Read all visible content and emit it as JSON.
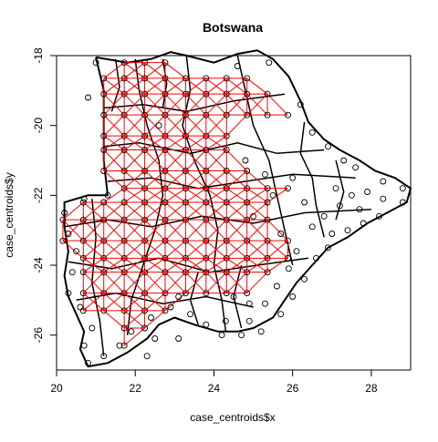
{
  "chart_data": {
    "type": "scatter",
    "title": "Botswana",
    "xlabel": "case_centroids$x",
    "ylabel": "case_centroids$y",
    "xlim": [
      20,
      29
    ],
    "ylim": [
      -27,
      -18
    ],
    "x_ticks": [
      "20",
      "22",
      "24",
      "26",
      "28"
    ],
    "y_ticks": [
      "-18",
      "-20",
      "-22",
      "-24",
      "-26"
    ],
    "grid": false,
    "legend": "none",
    "colors": {
      "points": "#000000",
      "grid_links": "#ff0000",
      "borders": "#000000",
      "network_links": "#000000"
    },
    "grid_x_min": 21.2,
    "grid_step": 0.52,
    "grid_rows": [
      {
        "y": -18.2,
        "cols": [
          1,
          2,
          3
        ]
      },
      {
        "y": -18.65,
        "cols": [
          0,
          1,
          2,
          3,
          4,
          5,
          6,
          7
        ]
      },
      {
        "y": -19.1,
        "cols": [
          0,
          1,
          2,
          3,
          4,
          5,
          6,
          7,
          8
        ]
      },
      {
        "y": -19.7,
        "cols": [
          0,
          1,
          2,
          3,
          4,
          5,
          6,
          7,
          8,
          9
        ]
      },
      {
        "y": -20.3,
        "cols": [
          0,
          1,
          2,
          3,
          4,
          5,
          6
        ]
      },
      {
        "y": -20.7,
        "cols": [
          0,
          1,
          2,
          3,
          4,
          5,
          6
        ]
      },
      {
        "y": -21.3,
        "cols": [
          0,
          1,
          2,
          3,
          4,
          5,
          6,
          7
        ]
      },
      {
        "y": -21.8,
        "cols": [
          1,
          2,
          3,
          4,
          5,
          6,
          7,
          8,
          9
        ]
      },
      {
        "y": -22.2,
        "cols": [
          2,
          3,
          4,
          5,
          6,
          7,
          8
        ]
      },
      {
        "y": -22.7,
        "cols": [
          3,
          4,
          5,
          6,
          7,
          8
        ]
      },
      {
        "y": -23.3,
        "cols": [
          3,
          4,
          5,
          6,
          7,
          8,
          9
        ]
      },
      {
        "y": -23.8,
        "cols": [
          3,
          4,
          5,
          6,
          7,
          8,
          9
        ]
      },
      {
        "y": -24.2,
        "cols": [
          2,
          3,
          4,
          5,
          6,
          7,
          8
        ]
      },
      {
        "y": -24.8,
        "cols": [
          3,
          4,
          5,
          6,
          7
        ]
      },
      {
        "y": -25.3,
        "cols": [
          0,
          1,
          2,
          3
        ]
      },
      {
        "y": -25.8,
        "cols": [
          1,
          2
        ]
      },
      {
        "y": -26.3,
        "cols": [
          1
        ]
      }
    ],
    "grid_rows_left": [
      {
        "y": -22.2,
        "cols": [
          -1,
          0,
          1
        ]
      },
      {
        "y": -22.7,
        "cols": [
          -2,
          -1,
          0,
          1,
          2
        ]
      },
      {
        "y": -23.3,
        "cols": [
          -2,
          -1,
          0,
          1,
          2
        ]
      },
      {
        "y": -23.8,
        "cols": [
          -1,
          0,
          1,
          2
        ]
      },
      {
        "y": -24.2,
        "cols": [
          -1,
          0,
          1
        ]
      },
      {
        "y": -24.8,
        "cols": [
          -1,
          0,
          1,
          2
        ]
      },
      {
        "y": -25.3,
        "cols": [
          -1
        ]
      }
    ],
    "extra_points": [
      [
        24.6,
        -18.3
      ],
      [
        25.4,
        -18.2
      ],
      [
        26.2,
        -19.4
      ],
      [
        26.5,
        -20.2
      ],
      [
        26.9,
        -20.6
      ],
      [
        27.3,
        -21.0
      ],
      [
        27.6,
        -21.2
      ],
      [
        27.1,
        -21.8
      ],
      [
        27.5,
        -22.0
      ],
      [
        27.9,
        -21.9
      ],
      [
        28.3,
        -21.6
      ],
      [
        28.8,
        -21.8
      ],
      [
        28.3,
        -22.1
      ],
      [
        27.7,
        -22.4
      ],
      [
        27.2,
        -22.3
      ],
      [
        26.8,
        -22.6
      ],
      [
        26.3,
        -22.2
      ],
      [
        26.5,
        -22.9
      ],
      [
        27.0,
        -23.1
      ],
      [
        27.4,
        -23.0
      ],
      [
        27.8,
        -22.8
      ],
      [
        28.2,
        -22.6
      ],
      [
        28.8,
        -22.2
      ],
      [
        26.1,
        -23.6
      ],
      [
        26.6,
        -23.8
      ],
      [
        26.9,
        -23.5
      ],
      [
        25.9,
        -24.1
      ],
      [
        26.3,
        -24.4
      ],
      [
        25.6,
        -24.6
      ],
      [
        26.0,
        -24.9
      ],
      [
        25.3,
        -25.1
      ],
      [
        25.7,
        -25.4
      ],
      [
        24.9,
        -25.6
      ],
      [
        25.2,
        -25.9
      ],
      [
        24.7,
        -26.0
      ],
      [
        24.3,
        -25.6
      ],
      [
        23.8,
        -25.7
      ],
      [
        23.4,
        -25.4
      ],
      [
        22.9,
        -25.2
      ],
      [
        22.4,
        -25.5
      ],
      [
        22.5,
        -26.1
      ],
      [
        21.6,
        -26.3
      ],
      [
        21.2,
        -26.6
      ],
      [
        20.8,
        -26.8
      ],
      [
        20.7,
        -26.3
      ],
      [
        20.9,
        -25.8
      ],
      [
        20.6,
        -25.2
      ],
      [
        20.3,
        -24.8
      ],
      [
        20.4,
        -24.2
      ],
      [
        20.5,
        -23.6
      ],
      [
        20.3,
        -23.1
      ],
      [
        20.2,
        -22.5
      ],
      [
        20.7,
        -22.1
      ],
      [
        21.3,
        -22.0
      ],
      [
        22.6,
        -20.0
      ],
      [
        24.8,
        -21.0
      ],
      [
        25.3,
        -21.4
      ],
      [
        25.5,
        -22.0
      ],
      [
        24.5,
        -24.9
      ],
      [
        23.1,
        -24.9
      ],
      [
        21.0,
        -18.2
      ],
      [
        20.8,
        -19.2
      ],
      [
        22.3,
        -26.6
      ],
      [
        24.9,
        -25.1
      ],
      [
        26.0,
        -21.5
      ],
      [
        25.0,
        -22.6
      ],
      [
        25.7,
        -23.1
      ],
      [
        24.2,
        -26.0
      ],
      [
        23.1,
        -26.1
      ],
      [
        21.9,
        -25.9
      ]
    ],
    "outline": [
      [
        21.0,
        -18.05
      ],
      [
        21.8,
        -18.2
      ],
      [
        22.4,
        -18.1
      ],
      [
        22.9,
        -17.9
      ],
      [
        23.3,
        -18.0
      ],
      [
        24.0,
        -18.2
      ],
      [
        24.6,
        -17.95
      ],
      [
        25.1,
        -17.85
      ],
      [
        25.5,
        -18.1
      ],
      [
        25.9,
        -18.6
      ],
      [
        26.2,
        -19.3
      ],
      [
        26.4,
        -19.9
      ],
      [
        26.8,
        -20.4
      ],
      [
        27.2,
        -20.7
      ],
      [
        27.7,
        -21.0
      ],
      [
        28.1,
        -21.3
      ],
      [
        28.6,
        -21.5
      ],
      [
        29.0,
        -21.8
      ],
      [
        28.9,
        -22.2
      ],
      [
        28.4,
        -22.5
      ],
      [
        27.9,
        -22.8
      ],
      [
        27.4,
        -23.2
      ],
      [
        26.9,
        -23.5
      ],
      [
        26.5,
        -24.0
      ],
      [
        26.1,
        -24.5
      ],
      [
        25.8,
        -25.0
      ],
      [
        25.5,
        -25.5
      ],
      [
        25.0,
        -25.8
      ],
      [
        24.6,
        -25.9
      ],
      [
        24.1,
        -25.9
      ],
      [
        23.5,
        -25.7
      ],
      [
        23.0,
        -25.5
      ],
      [
        22.6,
        -25.7
      ],
      [
        22.3,
        -26.1
      ],
      [
        21.8,
        -26.5
      ],
      [
        21.3,
        -26.8
      ],
      [
        20.8,
        -26.9
      ],
      [
        20.6,
        -26.4
      ],
      [
        20.7,
        -25.9
      ],
      [
        20.5,
        -25.4
      ],
      [
        20.3,
        -24.9
      ],
      [
        20.2,
        -24.3
      ],
      [
        20.3,
        -23.6
      ],
      [
        20.2,
        -22.9
      ],
      [
        20.2,
        -22.2
      ],
      [
        20.8,
        -22.0
      ],
      [
        21.3,
        -22.0
      ],
      [
        21.2,
        -21.0
      ],
      [
        21.2,
        -20.0
      ],
      [
        21.2,
        -19.0
      ],
      [
        21.0,
        -18.05
      ]
    ],
    "borders": [
      [
        [
          22.0,
          -18.1
        ],
        [
          22.1,
          -19.0
        ],
        [
          22.3,
          -20.0
        ],
        [
          22.6,
          -21.0
        ],
        [
          22.7,
          -22.0
        ],
        [
          22.5,
          -23.0
        ],
        [
          22.2,
          -24.0
        ],
        [
          21.9,
          -25.0
        ],
        [
          21.8,
          -26.0
        ]
      ],
      [
        [
          23.3,
          -18.0
        ],
        [
          23.4,
          -19.0
        ],
        [
          23.2,
          -20.0
        ],
        [
          23.5,
          -21.0
        ],
        [
          23.9,
          -22.0
        ],
        [
          24.1,
          -23.0
        ],
        [
          24.0,
          -24.0
        ],
        [
          24.2,
          -25.0
        ],
        [
          24.3,
          -25.9
        ]
      ],
      [
        [
          24.6,
          -18.0
        ],
        [
          24.8,
          -19.0
        ],
        [
          25.0,
          -20.0
        ],
        [
          25.4,
          -21.0
        ],
        [
          25.6,
          -22.0
        ],
        [
          25.8,
          -23.0
        ],
        [
          26.0,
          -24.0
        ]
      ],
      [
        [
          21.2,
          -19.5
        ],
        [
          22.2,
          -19.4
        ],
        [
          23.3,
          -19.6
        ],
        [
          24.5,
          -19.3
        ],
        [
          25.8,
          -19.1
        ]
      ],
      [
        [
          21.2,
          -20.6
        ],
        [
          22.1,
          -20.5
        ],
        [
          23.4,
          -20.8
        ],
        [
          24.6,
          -20.5
        ],
        [
          25.6,
          -20.8
        ],
        [
          26.8,
          -20.7
        ]
      ],
      [
        [
          21.3,
          -21.6
        ],
        [
          22.4,
          -21.5
        ],
        [
          23.6,
          -21.8
        ],
        [
          24.8,
          -21.6
        ],
        [
          26.0,
          -21.4
        ],
        [
          27.6,
          -21.5
        ]
      ],
      [
        [
          20.2,
          -22.9
        ],
        [
          21.3,
          -22.7
        ],
        [
          22.4,
          -22.9
        ],
        [
          23.7,
          -22.6
        ],
        [
          25.0,
          -22.8
        ],
        [
          26.3,
          -22.5
        ],
        [
          28.0,
          -22.4
        ]
      ],
      [
        [
          20.3,
          -23.9
        ],
        [
          21.4,
          -24.1
        ],
        [
          22.6,
          -23.8
        ],
        [
          23.9,
          -24.2
        ],
        [
          25.1,
          -24.0
        ],
        [
          26.4,
          -23.8
        ]
      ],
      [
        [
          20.5,
          -25.0
        ],
        [
          21.5,
          -24.8
        ],
        [
          22.7,
          -25.1
        ],
        [
          23.8,
          -24.9
        ],
        [
          25.0,
          -25.2
        ]
      ],
      [
        [
          21.5,
          -18.1
        ],
        [
          21.6,
          -18.9
        ],
        [
          21.4,
          -19.6
        ]
      ],
      [
        [
          22.7,
          -18.1
        ],
        [
          22.8,
          -18.8
        ],
        [
          22.7,
          -19.5
        ]
      ],
      [
        [
          26.3,
          -19.9
        ],
        [
          26.2,
          -20.8
        ],
        [
          26.5,
          -21.5
        ],
        [
          26.6,
          -22.3
        ],
        [
          26.8,
          -23.2
        ]
      ],
      [
        [
          27.1,
          -21.0
        ],
        [
          27.3,
          -21.9
        ],
        [
          27.1,
          -22.7
        ]
      ],
      [
        [
          20.9,
          -22.1
        ],
        [
          21.0,
          -23.2
        ],
        [
          20.9,
          -24.5
        ],
        [
          21.1,
          -25.6
        ],
        [
          21.2,
          -26.6
        ]
      ],
      [
        [
          23.6,
          -24.2
        ],
        [
          23.4,
          -25.0
        ],
        [
          23.6,
          -25.7
        ]
      ],
      [
        [
          24.7,
          -24.0
        ],
        [
          24.5,
          -24.9
        ],
        [
          24.7,
          -25.8
        ]
      ]
    ]
  }
}
